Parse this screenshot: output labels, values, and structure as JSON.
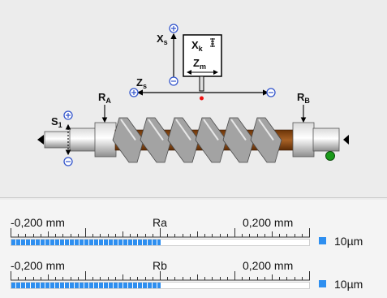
{
  "diagram": {
    "labels": {
      "xs": "X",
      "xs_sub": "s",
      "xk": "X",
      "xk_sub": "k",
      "zm": "Z",
      "zm_sub": "m",
      "zs": "Z",
      "zs_sub": "s",
      "ra": "R",
      "ra_sub": "A",
      "rb": "R",
      "rb_sub": "B",
      "s1": "S",
      "s1_sub": "1"
    },
    "colors": {
      "screw_core": "#8a4a14",
      "thread": "#a3a3a3",
      "status_led": "#1a9a1a",
      "probe_tip": "#ee1111",
      "marker": "#3355cc"
    }
  },
  "gauges": [
    {
      "name": "Ra",
      "min_label": "-0,200 mm",
      "max_label": "0,200 mm",
      "unit_label": "10µm",
      "fill_fraction": 0.5,
      "color": "#2e8ff0"
    },
    {
      "name": "Rb",
      "min_label": "-0,200 mm",
      "max_label": "0,200 mm",
      "unit_label": "10µm",
      "fill_fraction": 0.5,
      "color": "#2e8ff0"
    }
  ]
}
